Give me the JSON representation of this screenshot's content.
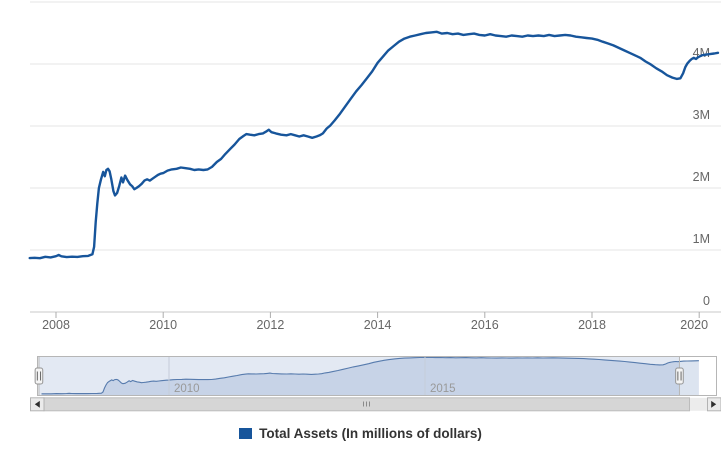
{
  "legend": {
    "label": "Total Assets (In millions of dollars)",
    "swatch_color": "#17559B"
  },
  "colors": {
    "series_line": "#17559B",
    "gridline": "#e6e6e6",
    "axis_line": "#c9c9c9",
    "tick": "#adadad",
    "axis_label": "#666666",
    "nav_line": "#5076A8",
    "nav_fill": "#dce4f0",
    "nav_mask": "rgba(113,144,197,0.20)",
    "nav_outline": "#b6b6b6",
    "nav_grid": "#c6ccd8",
    "nav_label": "#999999",
    "handle_fill": "#f4f4f4",
    "handle_border": "#959595",
    "handle_stripe": "#666666",
    "scroll_track": "#ececec",
    "scroll_thumb": "#d6d6d6",
    "scroll_thumb_border": "#bcbcbc",
    "scroll_button": "#ebebeb",
    "scroll_button_border": "#b3b3b3",
    "scroll_arrow": "#303030",
    "scroll_grip": "#8a8a8a"
  },
  "chart_data": {
    "type": "line",
    "title": "",
    "xlabel": "",
    "ylabel": "",
    "unit": "millions of dollars",
    "grid": true,
    "legend_position": "bottom-center",
    "y_axis_side": "right",
    "xlim": [
      2007.51,
      2020.39
    ],
    "ylim": [
      0,
      5000000
    ],
    "x_ticks": [
      2008,
      2010,
      2012,
      2014,
      2016,
      2018,
      2020
    ],
    "y_ticks": [
      {
        "value": 0,
        "label": "0"
      },
      {
        "value": 1000000,
        "label": "1M"
      },
      {
        "value": 2000000,
        "label": "2M"
      },
      {
        "value": 3000000,
        "label": "3M"
      },
      {
        "value": 4000000,
        "label": "4M"
      },
      {
        "value": 5000000,
        "label": ""
      }
    ],
    "navigator": {
      "xlim": [
        2007.44,
        2020.68
      ],
      "selected_range": [
        2007.45,
        2019.97
      ],
      "labels": [
        {
          "year": 2010,
          "label": "2010"
        },
        {
          "year": 2015,
          "label": "2015"
        }
      ]
    },
    "series": [
      {
        "name": "Total Assets (In millions of dollars)",
        "color": "#17559B",
        "points": [
          [
            2007.51,
            870000
          ],
          [
            2007.6,
            875000
          ],
          [
            2007.7,
            868000
          ],
          [
            2007.8,
            890000
          ],
          [
            2007.9,
            880000
          ],
          [
            2008.0,
            900000
          ],
          [
            2008.05,
            920000
          ],
          [
            2008.1,
            898000
          ],
          [
            2008.2,
            885000
          ],
          [
            2008.3,
            892000
          ],
          [
            2008.4,
            888000
          ],
          [
            2008.5,
            900000
          ],
          [
            2008.6,
            905000
          ],
          [
            2008.68,
            930000
          ],
          [
            2008.71,
            1050000
          ],
          [
            2008.74,
            1450000
          ],
          [
            2008.77,
            1750000
          ],
          [
            2008.8,
            2000000
          ],
          [
            2008.84,
            2140000
          ],
          [
            2008.88,
            2260000
          ],
          [
            2008.91,
            2190000
          ],
          [
            2008.94,
            2290000
          ],
          [
            2008.97,
            2310000
          ],
          [
            2009.0,
            2270000
          ],
          [
            2009.03,
            2150000
          ],
          [
            2009.07,
            1950000
          ],
          [
            2009.1,
            1880000
          ],
          [
            2009.14,
            1920000
          ],
          [
            2009.18,
            2030000
          ],
          [
            2009.22,
            2170000
          ],
          [
            2009.25,
            2090000
          ],
          [
            2009.29,
            2200000
          ],
          [
            2009.33,
            2130000
          ],
          [
            2009.38,
            2060000
          ],
          [
            2009.42,
            2030000
          ],
          [
            2009.46,
            1980000
          ],
          [
            2009.5,
            2000000
          ],
          [
            2009.55,
            2030000
          ],
          [
            2009.6,
            2070000
          ],
          [
            2009.65,
            2120000
          ],
          [
            2009.7,
            2140000
          ],
          [
            2009.75,
            2120000
          ],
          [
            2009.8,
            2150000
          ],
          [
            2009.85,
            2180000
          ],
          [
            2009.9,
            2210000
          ],
          [
            2009.95,
            2230000
          ],
          [
            2010.0,
            2240000
          ],
          [
            2010.08,
            2280000
          ],
          [
            2010.16,
            2300000
          ],
          [
            2010.25,
            2310000
          ],
          [
            2010.33,
            2330000
          ],
          [
            2010.42,
            2320000
          ],
          [
            2010.5,
            2310000
          ],
          [
            2010.58,
            2290000
          ],
          [
            2010.66,
            2300000
          ],
          [
            2010.75,
            2290000
          ],
          [
            2010.83,
            2300000
          ],
          [
            2010.91,
            2340000
          ],
          [
            2011.0,
            2420000
          ],
          [
            2011.08,
            2470000
          ],
          [
            2011.16,
            2550000
          ],
          [
            2011.25,
            2630000
          ],
          [
            2011.33,
            2700000
          ],
          [
            2011.42,
            2790000
          ],
          [
            2011.5,
            2840000
          ],
          [
            2011.55,
            2870000
          ],
          [
            2011.62,
            2860000
          ],
          [
            2011.7,
            2850000
          ],
          [
            2011.78,
            2870000
          ],
          [
            2011.86,
            2880000
          ],
          [
            2011.92,
            2910000
          ],
          [
            2011.97,
            2940000
          ],
          [
            2012.02,
            2900000
          ],
          [
            2012.1,
            2880000
          ],
          [
            2012.2,
            2860000
          ],
          [
            2012.3,
            2850000
          ],
          [
            2012.38,
            2870000
          ],
          [
            2012.46,
            2850000
          ],
          [
            2012.54,
            2830000
          ],
          [
            2012.62,
            2850000
          ],
          [
            2012.7,
            2830000
          ],
          [
            2012.78,
            2810000
          ],
          [
            2012.86,
            2830000
          ],
          [
            2012.92,
            2850000
          ],
          [
            2012.98,
            2880000
          ],
          [
            2013.05,
            2960000
          ],
          [
            2013.12,
            3010000
          ],
          [
            2013.2,
            3090000
          ],
          [
            2013.3,
            3200000
          ],
          [
            2013.4,
            3320000
          ],
          [
            2013.5,
            3440000
          ],
          [
            2013.6,
            3560000
          ],
          [
            2013.7,
            3660000
          ],
          [
            2013.8,
            3770000
          ],
          [
            2013.9,
            3880000
          ],
          [
            2014.0,
            4020000
          ],
          [
            2014.1,
            4120000
          ],
          [
            2014.2,
            4220000
          ],
          [
            2014.3,
            4290000
          ],
          [
            2014.4,
            4360000
          ],
          [
            2014.5,
            4410000
          ],
          [
            2014.6,
            4440000
          ],
          [
            2014.7,
            4460000
          ],
          [
            2014.8,
            4480000
          ],
          [
            2014.9,
            4500000
          ],
          [
            2015.0,
            4510000
          ],
          [
            2015.1,
            4520000
          ],
          [
            2015.2,
            4490000
          ],
          [
            2015.3,
            4500000
          ],
          [
            2015.4,
            4480000
          ],
          [
            2015.5,
            4490000
          ],
          [
            2015.6,
            4470000
          ],
          [
            2015.7,
            4480000
          ],
          [
            2015.8,
            4490000
          ],
          [
            2015.9,
            4470000
          ],
          [
            2016.0,
            4460000
          ],
          [
            2016.1,
            4480000
          ],
          [
            2016.2,
            4460000
          ],
          [
            2016.3,
            4450000
          ],
          [
            2016.4,
            4440000
          ],
          [
            2016.5,
            4460000
          ],
          [
            2016.6,
            4450000
          ],
          [
            2016.7,
            4440000
          ],
          [
            2016.8,
            4460000
          ],
          [
            2016.9,
            4450000
          ],
          [
            2017.0,
            4460000
          ],
          [
            2017.1,
            4450000
          ],
          [
            2017.2,
            4470000
          ],
          [
            2017.3,
            4450000
          ],
          [
            2017.4,
            4460000
          ],
          [
            2017.5,
            4470000
          ],
          [
            2017.6,
            4460000
          ],
          [
            2017.7,
            4440000
          ],
          [
            2017.8,
            4430000
          ],
          [
            2017.9,
            4420000
          ],
          [
            2018.0,
            4410000
          ],
          [
            2018.1,
            4390000
          ],
          [
            2018.2,
            4360000
          ],
          [
            2018.3,
            4330000
          ],
          [
            2018.4,
            4300000
          ],
          [
            2018.5,
            4260000
          ],
          [
            2018.6,
            4220000
          ],
          [
            2018.7,
            4180000
          ],
          [
            2018.8,
            4140000
          ],
          [
            2018.9,
            4100000
          ],
          [
            2019.0,
            4040000
          ],
          [
            2019.1,
            3990000
          ],
          [
            2019.2,
            3930000
          ],
          [
            2019.3,
            3880000
          ],
          [
            2019.4,
            3820000
          ],
          [
            2019.5,
            3780000
          ],
          [
            2019.58,
            3760000
          ],
          [
            2019.65,
            3770000
          ],
          [
            2019.7,
            3850000
          ],
          [
            2019.74,
            3950000
          ],
          [
            2019.78,
            4010000
          ],
          [
            2019.82,
            4050000
          ],
          [
            2019.86,
            4080000
          ],
          [
            2019.9,
            4100000
          ],
          [
            2019.94,
            4080000
          ],
          [
            2019.98,
            4110000
          ],
          [
            2020.05,
            4140000
          ],
          [
            2020.12,
            4150000
          ],
          [
            2020.2,
            4160000
          ],
          [
            2020.28,
            4170000
          ],
          [
            2020.35,
            4180000
          ]
        ]
      }
    ]
  }
}
